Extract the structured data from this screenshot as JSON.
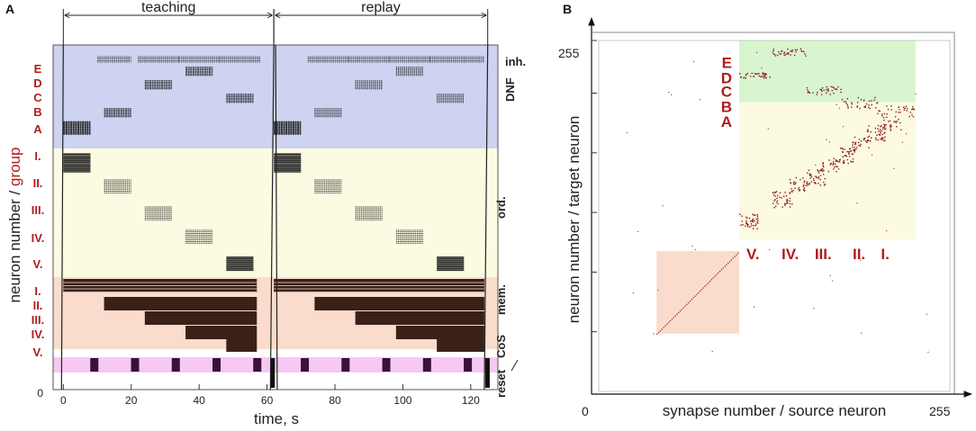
{
  "chart_data": [
    {
      "type": "raster",
      "panel_label": "A",
      "xlabel": "time, s",
      "ylabel_main": "neuron number / ",
      "ylabel_accent": "group",
      "xlim": [
        -3,
        128
      ],
      "xticks": [
        0,
        20,
        40,
        60,
        80,
        100,
        120
      ],
      "ytick_zero": "0",
      "phases": [
        {
          "label": "teaching",
          "start": 0,
          "end": 62
        },
        {
          "label": "replay",
          "start": 62,
          "end": 125
        }
      ],
      "regions": [
        {
          "name": "inh.",
          "color": "#cdd3f0"
        },
        {
          "name": "DNF",
          "color": "#cdd3f0"
        },
        {
          "name": "ord.",
          "color": "#fcfbe2"
        },
        {
          "name": "mem.",
          "color": "#f9dccb"
        },
        {
          "name": "CoS",
          "color": "#f6c8f2"
        },
        {
          "name": "reset",
          "color": "#ffffff"
        }
      ],
      "dnf_groups": [
        "E",
        "D",
        "C",
        "B",
        "A"
      ],
      "ordinal_groups": [
        "I.",
        "II.",
        "III.",
        "IV.",
        "V."
      ],
      "memory_groups": [
        "I.",
        "II.",
        "III.",
        "IV.",
        "V."
      ],
      "inh_bursts": [
        [
          10,
          20
        ],
        [
          22,
          34
        ],
        [
          34,
          46
        ],
        [
          46,
          58
        ],
        [
          72,
          84
        ],
        [
          84,
          96
        ],
        [
          96,
          108
        ],
        [
          108,
          118
        ],
        [
          118,
          124
        ]
      ],
      "dnf_events": [
        {
          "group": "A",
          "start": 0,
          "end": 8,
          "phase": "teaching"
        },
        {
          "group": "B",
          "start": 12,
          "end": 20,
          "phase": "teaching"
        },
        {
          "group": "D",
          "start": 24,
          "end": 32,
          "phase": "teaching"
        },
        {
          "group": "E",
          "start": 36,
          "end": 44,
          "phase": "teaching"
        },
        {
          "group": "C",
          "start": 48,
          "end": 56,
          "phase": "teaching"
        },
        {
          "group": "A",
          "start": 62,
          "end": 70,
          "phase": "replay"
        },
        {
          "group": "B",
          "start": 74,
          "end": 82,
          "phase": "replay"
        },
        {
          "group": "D",
          "start": 86,
          "end": 94,
          "phase": "replay"
        },
        {
          "group": "E",
          "start": 98,
          "end": 106,
          "phase": "replay"
        },
        {
          "group": "C",
          "start": 110,
          "end": 118,
          "phase": "replay"
        }
      ],
      "ordinal_events": [
        {
          "group": "I.",
          "start": 0,
          "end": 8
        },
        {
          "group": "II.",
          "start": 12,
          "end": 20
        },
        {
          "group": "III.",
          "start": 24,
          "end": 32
        },
        {
          "group": "IV.",
          "start": 36,
          "end": 44
        },
        {
          "group": "V.",
          "start": 48,
          "end": 56
        },
        {
          "group": "I.",
          "start": 62,
          "end": 70
        },
        {
          "group": "II.",
          "start": 74,
          "end": 82
        },
        {
          "group": "III.",
          "start": 86,
          "end": 94
        },
        {
          "group": "IV.",
          "start": 98,
          "end": 106
        },
        {
          "group": "V.",
          "start": 110,
          "end": 118
        }
      ],
      "memory_onsets": {
        "I.": 0,
        "II.": 12,
        "III.": 24,
        "IV.": 36,
        "V.": 48
      },
      "memory_offsets": {
        "teaching": 57,
        "replay": 124
      },
      "cos_times": [
        9,
        21,
        33,
        45,
        57,
        71,
        83,
        95,
        107,
        119
      ]
    },
    {
      "type": "heatmap",
      "panel_label": "B",
      "xlabel": "synapse number / source neuron",
      "ylabel": "neuron number / target neuron",
      "xlim": [
        0,
        255
      ],
      "ylim": [
        0,
        255
      ],
      "x_tick_labels": [
        "0",
        "255"
      ],
      "y_tick_labels": [
        "255"
      ],
      "row_groups": [
        "E",
        "D",
        "C",
        "B",
        "A"
      ],
      "column_groups": [
        "V.",
        "IV.",
        "III.",
        "II.",
        "I."
      ],
      "green_block": {
        "source": [
          102,
          230
        ],
        "target": [
          210,
          255
        ]
      },
      "yellow_block": {
        "source": [
          102,
          230
        ],
        "target": [
          110,
          210
        ]
      },
      "orange_block": {
        "source": [
          42,
          102
        ],
        "target": [
          42,
          102
        ]
      },
      "weight_color": "#8b1a1a",
      "diagonal_range": [
        42,
        102
      ],
      "ordinal_clusters": [
        {
          "source": [
            102,
            116
          ],
          "target": [
            118,
            130
          ]
        },
        {
          "source": [
            126,
            140
          ],
          "target": [
            134,
            146
          ]
        },
        {
          "source": [
            150,
            164
          ],
          "target": [
            150,
            162
          ]
        },
        {
          "source": [
            172,
            186
          ],
          "target": [
            166,
            178
          ]
        },
        {
          "source": [
            194,
            208
          ],
          "target": [
            182,
            194
          ]
        }
      ],
      "dnf_clusters": [
        {
          "source": [
            102,
            124
          ],
          "target": [
            228,
            232
          ]
        },
        {
          "source": [
            124,
            150
          ],
          "target": [
            244,
            250
          ]
        },
        {
          "source": [
            150,
            176
          ],
          "target": [
            216,
            222
          ]
        },
        {
          "source": [
            176,
            202
          ],
          "target": [
            206,
            214
          ]
        },
        {
          "source": [
            202,
            230
          ],
          "target": [
            200,
            208
          ]
        }
      ],
      "memory_clusters": [
        {
          "source": [
            206,
            220
          ],
          "target": [
            190,
            200
          ]
        },
        {
          "source": [
            184,
            196
          ],
          "target": [
            176,
            186
          ]
        },
        {
          "source": [
            162,
            174
          ],
          "target": [
            160,
            170
          ]
        },
        {
          "source": [
            138,
            150
          ],
          "target": [
            146,
            156
          ]
        }
      ]
    }
  ],
  "colors": {
    "accent_red": "#b01c1c",
    "raster_black": "#1c1c1c",
    "memory_brown": "#3a2117",
    "cos_purple": "#3a103c"
  }
}
